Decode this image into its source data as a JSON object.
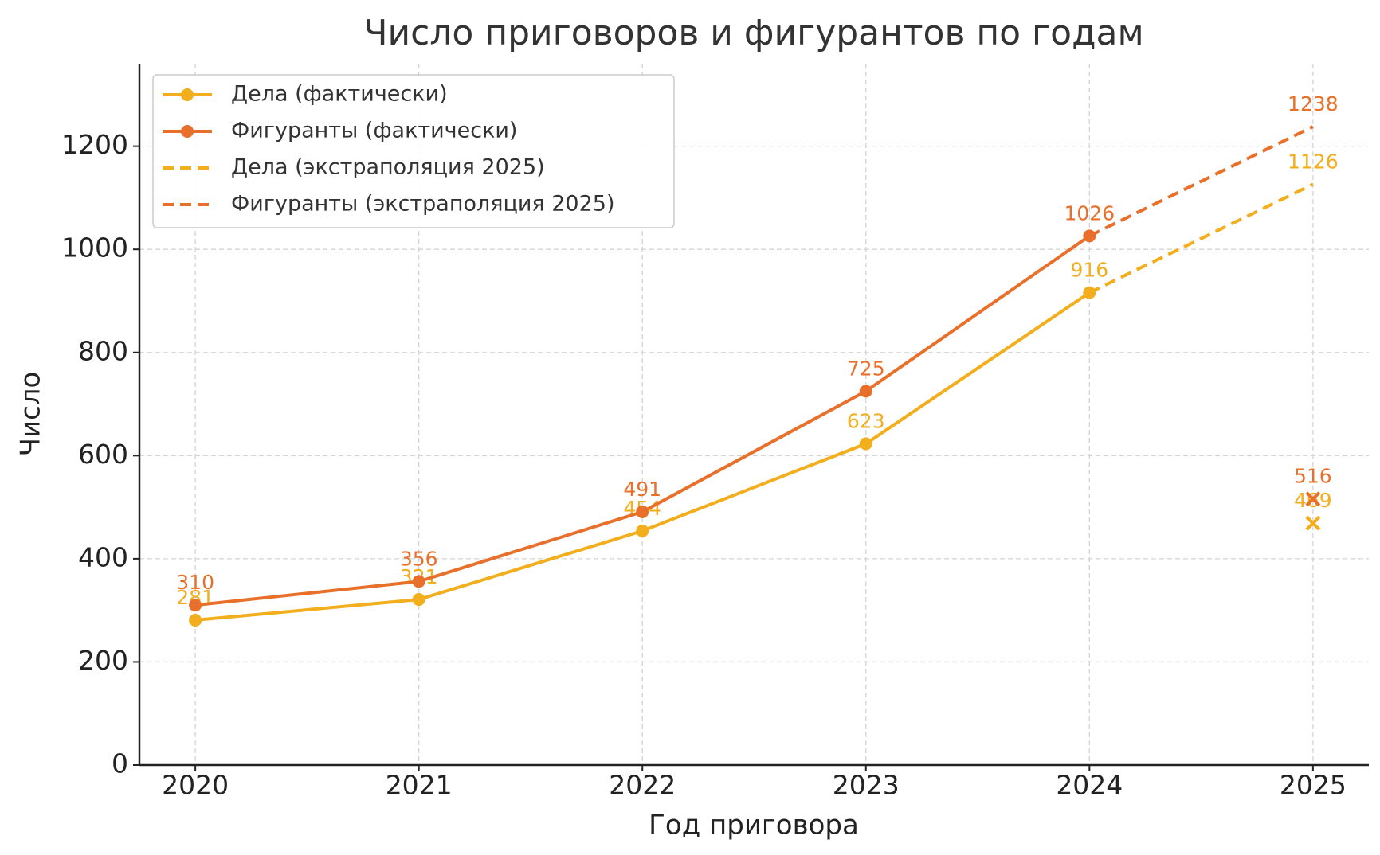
{
  "chart_data": {
    "type": "line",
    "title": "Число приговоров и фигурантов по годам",
    "x_label": "Год приговора",
    "y_label": "Число",
    "xlim": [
      2019.75,
      2025.25
    ],
    "xticks": [
      2020,
      2021,
      2022,
      2023,
      2024,
      2025
    ],
    "ylim": [
      0,
      1360
    ],
    "yticks": [
      0,
      200,
      400,
      600,
      800,
      1000,
      1200
    ],
    "grid": true,
    "legend": "upper left",
    "series": [
      {
        "name": "Дела (фактически)",
        "color": "#f2ae1c",
        "style": "solid",
        "marker": "o",
        "x": [
          2020,
          2021,
          2022,
          2023,
          2024
        ],
        "values": [
          281,
          321,
          454,
          623,
          916
        ]
      },
      {
        "name": "Фигуранты (фактически)",
        "color": "#e8702a",
        "style": "solid",
        "marker": "o",
        "x": [
          2020,
          2021,
          2022,
          2023,
          2024
        ],
        "values": [
          310,
          356,
          491,
          725,
          1026
        ]
      },
      {
        "name": "Дела (экстраполяция 2025)",
        "color": "#f2ae1c",
        "style": "dashed",
        "x": [
          2024,
          2025
        ],
        "values": [
          916,
          1126
        ]
      },
      {
        "name": "Фигуранты (экстраполяция 2025)",
        "color": "#e8702a",
        "style": "dashed",
        "x": [
          2024,
          2025
        ],
        "values": [
          1026,
          1238
        ]
      }
    ],
    "points": [
      {
        "x": 2025,
        "value": 469,
        "color": "#f2ae1c",
        "marker": "x"
      },
      {
        "x": 2025,
        "value": 516,
        "color": "#e8702a",
        "marker": "x"
      }
    ]
  }
}
